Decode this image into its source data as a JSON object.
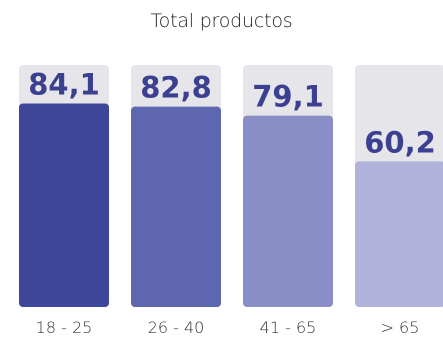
{
  "chart_data": {
    "type": "bar",
    "title": "Total productos",
    "categories": [
      "18 - 25",
      "26 - 40",
      "41 - 65",
      "> 65"
    ],
    "values": [
      84.1,
      82.8,
      79.1,
      60.2
    ],
    "value_labels": [
      "84,1",
      "82,8",
      "79,1",
      "60,2"
    ],
    "ylim": [
      0,
      100
    ],
    "xlabel": "",
    "ylabel": "",
    "grid": false,
    "colors": [
      "#3e4799",
      "#5f66b0",
      "#8a8ec6",
      "#b0b2dc"
    ],
    "track_color": "#e6e6ea",
    "label_color": "#3b4090"
  }
}
